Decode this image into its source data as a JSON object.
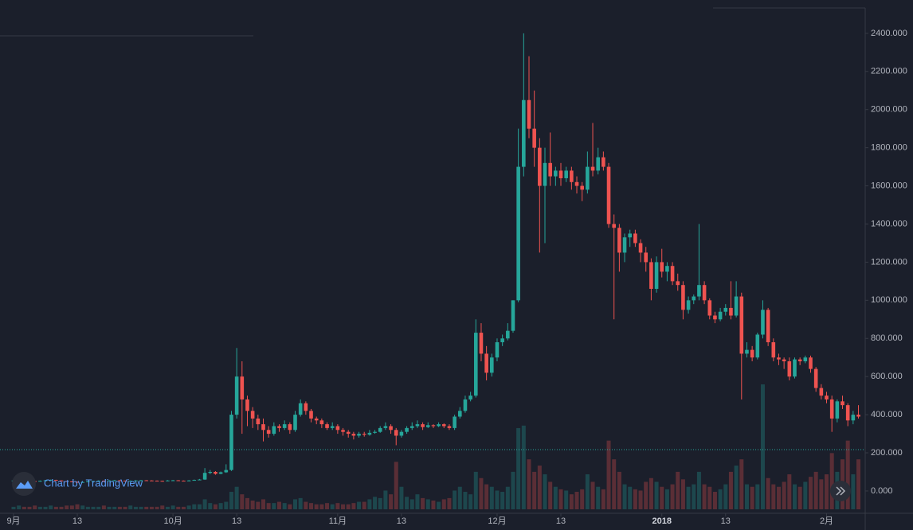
{
  "chart_data": {
    "type": "candlestick",
    "watermark": "Chart by TradingView",
    "ylim": [
      -117,
      2533
    ],
    "yticks": [
      {
        "value": 0,
        "label": "0.000"
      },
      {
        "value": 200,
        "label": "200.000"
      },
      {
        "value": 400,
        "label": "400.000"
      },
      {
        "value": 600,
        "label": "600.000"
      },
      {
        "value": 800,
        "label": "800.000"
      },
      {
        "value": 1000,
        "label": "1000.000"
      },
      {
        "value": 1200,
        "label": "1200.000"
      },
      {
        "value": 1400,
        "label": "1400.000"
      },
      {
        "value": 1600,
        "label": "1600.000"
      },
      {
        "value": 1800,
        "label": "1800.000"
      },
      {
        "value": 2000,
        "label": "2000.000"
      },
      {
        "value": 2200,
        "label": "2200.000"
      },
      {
        "value": 2400,
        "label": "2400.000"
      }
    ],
    "xticks": [
      {
        "value": 0,
        "label": "9月"
      },
      {
        "value": 12,
        "label": "13"
      },
      {
        "value": 30,
        "label": "10月"
      },
      {
        "value": 42,
        "label": "13"
      },
      {
        "value": 61,
        "label": "11月"
      },
      {
        "value": 73,
        "label": "13"
      },
      {
        "value": 91,
        "label": "12月"
      },
      {
        "value": 103,
        "label": "13"
      },
      {
        "value": 122,
        "label": "2018"
      },
      {
        "value": 134,
        "label": "13"
      },
      {
        "value": 153,
        "label": "2月"
      }
    ],
    "xlim": [
      0,
      160
    ],
    "up_color": "#26a69a",
    "down_color": "#ef5350",
    "price_line": 217,
    "price_line_color": "#26a69a",
    "vlim": [
      0,
      100
    ],
    "ohlc": [
      [
        52,
        57,
        50,
        55
      ],
      [
        55,
        59,
        53,
        57
      ],
      [
        57,
        58,
        52,
        54
      ],
      [
        54,
        56,
        50,
        52
      ],
      [
        52,
        54,
        48,
        50
      ],
      [
        50,
        55,
        49,
        53
      ],
      [
        53,
        58,
        52,
        56
      ],
      [
        56,
        60,
        55,
        58
      ],
      [
        58,
        59,
        53,
        55
      ],
      [
        55,
        56,
        50,
        52
      ],
      [
        52,
        53,
        48,
        50
      ],
      [
        50,
        51,
        46,
        48
      ],
      [
        48,
        49,
        43,
        45
      ],
      [
        45,
        49,
        44,
        47
      ],
      [
        47,
        52,
        46,
        50
      ],
      [
        50,
        54,
        49,
        52
      ],
      [
        52,
        56,
        51,
        54
      ],
      [
        54,
        55,
        51,
        53
      ],
      [
        53,
        57,
        52,
        55
      ],
      [
        55,
        58,
        54,
        56
      ],
      [
        56,
        57,
        52,
        54
      ],
      [
        54,
        55,
        50,
        52
      ],
      [
        52,
        55,
        51,
        53
      ],
      [
        53,
        57,
        52,
        55
      ],
      [
        55,
        58,
        54,
        56
      ],
      [
        56,
        57,
        53,
        55
      ],
      [
        55,
        56,
        52,
        54
      ],
      [
        54,
        55,
        51,
        53
      ],
      [
        53,
        54,
        50,
        52
      ],
      [
        52,
        57,
        51,
        55
      ],
      [
        55,
        58,
        54,
        56
      ],
      [
        56,
        57,
        52,
        54
      ],
      [
        54,
        55,
        50,
        52
      ],
      [
        52,
        57,
        51,
        55
      ],
      [
        55,
        60,
        54,
        58
      ],
      [
        58,
        63,
        57,
        60
      ],
      [
        60,
        120,
        58,
        95
      ],
      [
        95,
        110,
        88,
        100
      ],
      [
        100,
        104,
        85,
        90
      ],
      [
        90,
        102,
        88,
        98
      ],
      [
        98,
        140,
        95,
        110
      ],
      [
        110,
        420,
        105,
        400
      ],
      [
        400,
        750,
        380,
        600
      ],
      [
        600,
        680,
        300,
        480
      ],
      [
        480,
        500,
        340,
        420
      ],
      [
        420,
        440,
        330,
        380
      ],
      [
        380,
        400,
        320,
        350
      ],
      [
        350,
        380,
        260,
        320
      ],
      [
        320,
        340,
        280,
        300
      ],
      [
        300,
        360,
        290,
        340
      ],
      [
        340,
        350,
        310,
        330
      ],
      [
        330,
        370,
        320,
        350
      ],
      [
        350,
        360,
        300,
        320
      ],
      [
        320,
        420,
        310,
        400
      ],
      [
        400,
        480,
        390,
        460
      ],
      [
        460,
        470,
        400,
        420
      ],
      [
        420,
        430,
        360,
        380
      ],
      [
        380,
        390,
        350,
        370
      ],
      [
        370,
        380,
        330,
        350
      ],
      [
        350,
        360,
        320,
        330
      ],
      [
        330,
        360,
        320,
        340
      ],
      [
        340,
        350,
        300,
        320
      ],
      [
        320,
        330,
        290,
        310
      ],
      [
        310,
        320,
        280,
        300
      ],
      [
        300,
        310,
        270,
        290
      ],
      [
        290,
        310,
        280,
        300
      ],
      [
        300,
        310,
        285,
        295
      ],
      [
        295,
        320,
        290,
        305
      ],
      [
        305,
        320,
        300,
        310
      ],
      [
        310,
        340,
        305,
        330
      ],
      [
        330,
        360,
        320,
        340
      ],
      [
        340,
        350,
        300,
        320
      ],
      [
        320,
        330,
        240,
        290
      ],
      [
        290,
        320,
        280,
        310
      ],
      [
        310,
        340,
        300,
        330
      ],
      [
        330,
        360,
        320,
        340
      ],
      [
        340,
        370,
        330,
        350
      ],
      [
        350,
        360,
        320,
        335
      ],
      [
        335,
        360,
        330,
        345
      ],
      [
        345,
        350,
        330,
        340
      ],
      [
        340,
        360,
        335,
        350
      ],
      [
        350,
        355,
        330,
        340
      ],
      [
        340,
        350,
        320,
        330
      ],
      [
        330,
        400,
        320,
        390
      ],
      [
        390,
        440,
        380,
        420
      ],
      [
        420,
        500,
        410,
        480
      ],
      [
        480,
        520,
        470,
        500
      ],
      [
        500,
        900,
        490,
        830
      ],
      [
        830,
        880,
        680,
        720
      ],
      [
        720,
        760,
        580,
        620
      ],
      [
        620,
        720,
        600,
        700
      ],
      [
        700,
        800,
        680,
        780
      ],
      [
        780,
        820,
        760,
        800
      ],
      [
        800,
        880,
        790,
        840
      ],
      [
        840,
        1000,
        830,
        1000
      ],
      [
        1000,
        1900,
        990,
        1700
      ],
      [
        1700,
        2400,
        1650,
        2050
      ],
      [
        2050,
        2280,
        1850,
        1900
      ],
      [
        1900,
        2100,
        1700,
        1800
      ],
      [
        1800,
        1850,
        1250,
        1600
      ],
      [
        1600,
        1800,
        1300,
        1720
      ],
      [
        1720,
        1880,
        1600,
        1650
      ],
      [
        1650,
        1700,
        1600,
        1680
      ],
      [
        1680,
        1720,
        1600,
        1640
      ],
      [
        1640,
        1700,
        1620,
        1680
      ],
      [
        1680,
        1700,
        1580,
        1620
      ],
      [
        1620,
        1650,
        1560,
        1600
      ],
      [
        1600,
        1620,
        1520,
        1580
      ],
      [
        1580,
        1780,
        1560,
        1700
      ],
      [
        1700,
        1930,
        1650,
        1680
      ],
      [
        1680,
        1800,
        1660,
        1750
      ],
      [
        1750,
        1780,
        1680,
        1700
      ],
      [
        1700,
        1720,
        1380,
        1400
      ],
      [
        1400,
        1450,
        900,
        1380
      ],
      [
        1380,
        1400,
        1150,
        1250
      ],
      [
        1250,
        1350,
        1200,
        1330
      ],
      [
        1330,
        1370,
        1280,
        1350
      ],
      [
        1350,
        1370,
        1280,
        1300
      ],
      [
        1300,
        1320,
        1200,
        1250
      ],
      [
        1250,
        1280,
        1150,
        1200
      ],
      [
        1200,
        1220,
        1000,
        1060
      ],
      [
        1060,
        1230,
        1040,
        1200
      ],
      [
        1200,
        1270,
        1120,
        1150
      ],
      [
        1150,
        1200,
        1100,
        1180
      ],
      [
        1180,
        1200,
        1080,
        1100
      ],
      [
        1100,
        1140,
        1050,
        1080
      ],
      [
        1080,
        1100,
        900,
        950
      ],
      [
        950,
        1020,
        930,
        1000
      ],
      [
        1000,
        1030,
        980,
        1020
      ],
      [
        1020,
        1400,
        1000,
        1080
      ],
      [
        1080,
        1100,
        980,
        1000
      ],
      [
        1000,
        1010,
        900,
        920
      ],
      [
        920,
        940,
        880,
        900
      ],
      [
        900,
        960,
        890,
        940
      ],
      [
        940,
        980,
        920,
        960
      ],
      [
        960,
        1100,
        900,
        920
      ],
      [
        920,
        1100,
        910,
        1020
      ],
      [
        1020,
        1040,
        480,
        720
      ],
      [
        720,
        780,
        700,
        740
      ],
      [
        740,
        760,
        680,
        700
      ],
      [
        700,
        830,
        690,
        820
      ],
      [
        820,
        1000,
        800,
        950
      ],
      [
        950,
        960,
        760,
        780
      ],
      [
        780,
        800,
        680,
        700
      ],
      [
        700,
        720,
        660,
        690
      ],
      [
        690,
        700,
        640,
        680
      ],
      [
        680,
        700,
        580,
        600
      ],
      [
        600,
        700,
        590,
        690
      ],
      [
        690,
        700,
        660,
        680
      ],
      [
        680,
        710,
        670,
        700
      ],
      [
        700,
        710,
        620,
        640
      ],
      [
        640,
        650,
        520,
        540
      ],
      [
        540,
        560,
        480,
        500
      ],
      [
        500,
        520,
        460,
        480
      ],
      [
        480,
        500,
        310,
        380
      ],
      [
        380,
        480,
        360,
        470
      ],
      [
        470,
        500,
        430,
        450
      ],
      [
        450,
        460,
        340,
        370
      ],
      [
        370,
        420,
        350,
        400
      ],
      [
        400,
        450,
        380,
        390
      ]
    ],
    "volume": [
      2,
      3,
      2,
      2,
      3,
      2,
      2,
      3,
      2,
      2,
      3,
      3,
      4,
      3,
      2,
      2,
      2,
      3,
      2,
      2,
      2,
      2,
      3,
      2,
      2,
      2,
      2,
      2,
      3,
      2,
      3,
      2,
      2,
      3,
      4,
      4,
      8,
      5,
      4,
      5,
      6,
      14,
      18,
      12,
      9,
      7,
      6,
      8,
      5,
      5,
      6,
      5,
      4,
      8,
      9,
      6,
      5,
      4,
      4,
      5,
      4,
      5,
      4,
      4,
      5,
      6,
      6,
      8,
      10,
      9,
      15,
      12,
      38,
      18,
      10,
      8,
      12,
      9,
      8,
      7,
      6,
      8,
      9,
      15,
      18,
      14,
      12,
      30,
      25,
      20,
      18,
      15,
      14,
      18,
      30,
      65,
      67,
      40,
      30,
      35,
      28,
      22,
      18,
      16,
      15,
      12,
      14,
      16,
      28,
      22,
      18,
      16,
      55,
      40,
      30,
      20,
      18,
      16,
      15,
      22,
      25,
      22,
      18,
      16,
      20,
      30,
      24,
      18,
      20,
      30,
      20,
      18,
      14,
      16,
      20,
      30,
      35,
      40,
      20,
      18,
      20,
      100,
      25,
      20,
      18,
      22,
      28,
      20,
      18,
      22,
      26,
      30,
      24,
      28,
      45,
      30,
      40,
      55,
      28,
      40
    ]
  }
}
